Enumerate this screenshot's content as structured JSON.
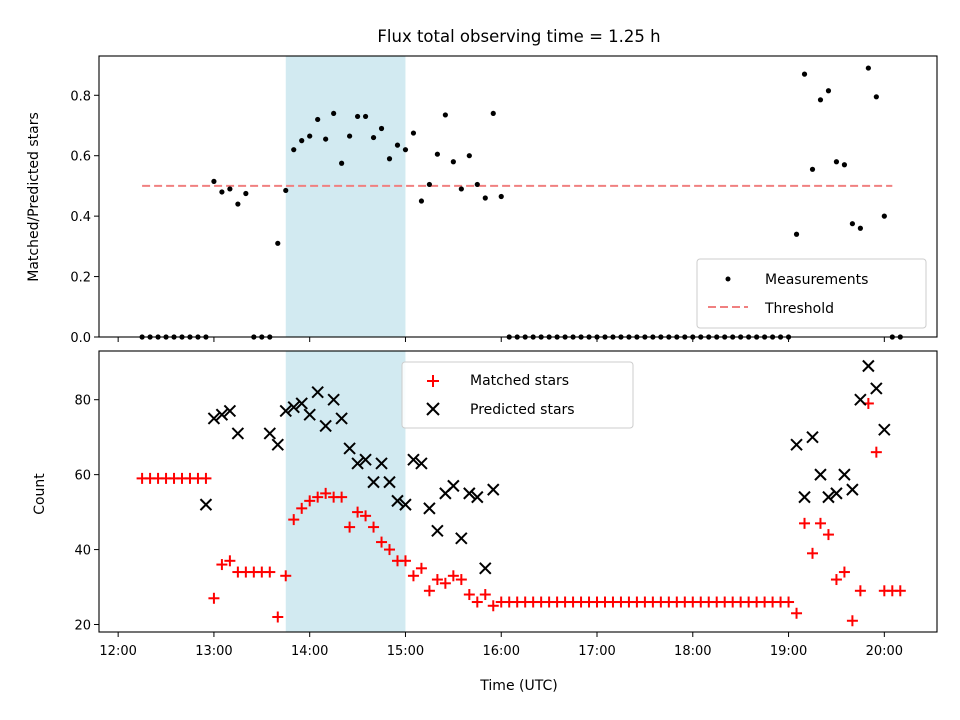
{
  "chart_data": [
    {
      "type": "scatter",
      "title": "Flux total observing time = 1.25 h",
      "xlabel": "",
      "ylabel": "Matched/Predicted stars",
      "xlim": [
        "12:00",
        "20:30"
      ],
      "ylim": [
        0,
        0.93
      ],
      "yticks": [
        0.0,
        0.2,
        0.4,
        0.6,
        0.8
      ],
      "shaded_interval": [
        "13:45",
        "15:00"
      ],
      "legend_position": "lower-right",
      "series": [
        {
          "name": "Measurements",
          "marker": "dot",
          "color": "#000000",
          "x": [
            "12:15",
            "12:20",
            "12:25",
            "12:30",
            "12:35",
            "12:40",
            "12:45",
            "12:50",
            "12:55",
            "13:00",
            "13:05",
            "13:10",
            "13:15",
            "13:20",
            "13:25",
            "13:30",
            "13:35",
            "13:40",
            "13:45",
            "13:50",
            "13:55",
            "14:00",
            "14:05",
            "14:10",
            "14:15",
            "14:20",
            "14:25",
            "14:30",
            "14:35",
            "14:40",
            "14:45",
            "14:50",
            "14:55",
            "15:00",
            "15:05",
            "15:10",
            "15:15",
            "15:20",
            "15:25",
            "15:30",
            "15:35",
            "15:40",
            "15:45",
            "15:50",
            "15:55",
            "16:00",
            "16:05",
            "16:10",
            "16:15",
            "16:20",
            "16:25",
            "16:30",
            "16:35",
            "16:40",
            "16:45",
            "16:50",
            "16:55",
            "17:00",
            "17:05",
            "17:10",
            "17:15",
            "17:20",
            "17:25",
            "17:30",
            "17:35",
            "17:40",
            "17:45",
            "17:50",
            "17:55",
            "18:00",
            "18:05",
            "18:10",
            "18:15",
            "18:20",
            "18:25",
            "18:30",
            "18:35",
            "18:40",
            "18:45",
            "18:50",
            "18:55",
            "19:00",
            "19:05",
            "19:10",
            "19:15",
            "19:20",
            "19:25",
            "19:30",
            "19:35",
            "19:40",
            "19:45",
            "19:50",
            "19:55",
            "20:00",
            "20:05",
            "20:10"
          ],
          "y": [
            0,
            0,
            0,
            0,
            0,
            0,
            0,
            0,
            0,
            0.515,
            0.48,
            0.49,
            0.44,
            0.475,
            0,
            0,
            0,
            0.31,
            0.485,
            0.62,
            0.65,
            0.665,
            0.72,
            0.655,
            0.74,
            0.575,
            0.665,
            0.73,
            0.73,
            0.66,
            0.69,
            0.59,
            0.635,
            0.62,
            0.675,
            0.45,
            0.505,
            0.605,
            0.735,
            0.58,
            0.49,
            0.6,
            0.505,
            0.46,
            0.74,
            0.465,
            0,
            0,
            0,
            0,
            0,
            0,
            0,
            0,
            0,
            0,
            0,
            0,
            0,
            0,
            0,
            0,
            0,
            0,
            0,
            0,
            0,
            0,
            0,
            0,
            0,
            0,
            0,
            0,
            0,
            0,
            0,
            0,
            0,
            0,
            0,
            0,
            0.34,
            0.87,
            0.555,
            0.785,
            0.815,
            0.58,
            0.57,
            0.375,
            0.36,
            0.89,
            0.795,
            0.4,
            0,
            0
          ]
        },
        {
          "name": "Threshold",
          "style": "dashed",
          "color": "#f08080",
          "x": [
            "12:15",
            "20:05"
          ],
          "y": [
            0.5,
            0.5
          ]
        }
      ]
    },
    {
      "type": "scatter",
      "xlabel": "Time (UTC)",
      "ylabel": "Count",
      "xlim": [
        "12:00",
        "20:30"
      ],
      "ylim": [
        18,
        93
      ],
      "yticks": [
        20,
        40,
        60,
        80
      ],
      "xticks": [
        "12:00",
        "13:00",
        "14:00",
        "15:00",
        "16:00",
        "17:00",
        "18:00",
        "19:00",
        "20:00"
      ],
      "shaded_interval": [
        "13:45",
        "15:00"
      ],
      "legend_position": "upper-center",
      "series": [
        {
          "name": "Matched stars",
          "marker": "plus",
          "color": "#ff0000",
          "x": [
            "12:15",
            "12:20",
            "12:25",
            "12:30",
            "12:35",
            "12:40",
            "12:45",
            "12:50",
            "12:55",
            "13:00",
            "13:05",
            "13:10",
            "13:15",
            "13:20",
            "13:25",
            "13:30",
            "13:35",
            "13:40",
            "13:45",
            "13:50",
            "13:55",
            "14:00",
            "14:05",
            "14:10",
            "14:15",
            "14:20",
            "14:25",
            "14:30",
            "14:35",
            "14:40",
            "14:45",
            "14:50",
            "14:55",
            "15:00",
            "15:05",
            "15:10",
            "15:15",
            "15:20",
            "15:25",
            "15:30",
            "15:35",
            "15:40",
            "15:45",
            "15:50",
            "15:55",
            "16:00",
            "16:05",
            "16:10",
            "16:15",
            "16:20",
            "16:25",
            "16:30",
            "16:35",
            "16:40",
            "16:45",
            "16:50",
            "16:55",
            "17:00",
            "17:05",
            "17:10",
            "17:15",
            "17:20",
            "17:25",
            "17:30",
            "17:35",
            "17:40",
            "17:45",
            "17:50",
            "17:55",
            "18:00",
            "18:05",
            "18:10",
            "18:15",
            "18:20",
            "18:25",
            "18:30",
            "18:35",
            "18:40",
            "18:45",
            "18:50",
            "18:55",
            "19:00",
            "19:05",
            "19:10",
            "19:15",
            "19:20",
            "19:25",
            "19:30",
            "19:35",
            "19:40",
            "19:45",
            "19:50",
            "19:55",
            "20:00",
            "20:05",
            "20:10"
          ],
          "y": [
            59,
            59,
            59,
            59,
            59,
            59,
            59,
            59,
            59,
            27,
            36,
            37,
            34,
            34,
            34,
            34,
            34,
            22,
            33,
            48,
            51,
            53,
            54,
            55,
            54,
            54,
            46,
            50,
            49,
            46,
            42,
            40,
            37,
            37,
            33,
            35,
            29,
            32,
            31,
            33,
            32,
            28,
            26,
            28,
            25,
            26,
            26,
            26,
            26,
            26,
            26,
            26,
            26,
            26,
            26,
            26,
            26,
            26,
            26,
            26,
            26,
            26,
            26,
            26,
            26,
            26,
            26,
            26,
            26,
            26,
            26,
            26,
            26,
            26,
            26,
            26,
            26,
            26,
            26,
            26,
            26,
            26,
            23,
            47,
            39,
            47,
            44,
            32,
            34,
            21,
            29,
            79,
            66,
            29,
            29,
            29
          ]
        },
        {
          "name": "Predicted stars",
          "marker": "x",
          "color": "#000000",
          "x": [
            "12:55",
            "13:00",
            "13:05",
            "13:10",
            "13:15",
            "13:35",
            "13:40",
            "13:45",
            "13:50",
            "13:55",
            "14:00",
            "14:05",
            "14:10",
            "14:15",
            "14:20",
            "14:25",
            "14:30",
            "14:35",
            "14:40",
            "14:45",
            "14:50",
            "14:55",
            "15:00",
            "15:05",
            "15:10",
            "15:15",
            "15:20",
            "15:25",
            "15:30",
            "15:35",
            "15:40",
            "15:45",
            "15:50",
            "15:55",
            "19:05",
            "19:10",
            "19:15",
            "19:20",
            "19:25",
            "19:30",
            "19:35",
            "19:40",
            "19:45",
            "19:50",
            "19:55",
            "20:00"
          ],
          "y": [
            52,
            75,
            76,
            77,
            71,
            71,
            68,
            77,
            78,
            79,
            76,
            82,
            73,
            80,
            75,
            67,
            63,
            64,
            58,
            63,
            58,
            53,
            52,
            64,
            63,
            51,
            45,
            55,
            57,
            43,
            55,
            54,
            35,
            56,
            68,
            54,
            70,
            60,
            54,
            55,
            60,
            56,
            80,
            89,
            83,
            72
          ]
        }
      ]
    }
  ],
  "x_tick_labels": [
    "12:00",
    "13:00",
    "14:00",
    "15:00",
    "16:00",
    "17:00",
    "18:00",
    "19:00",
    "20:00"
  ]
}
